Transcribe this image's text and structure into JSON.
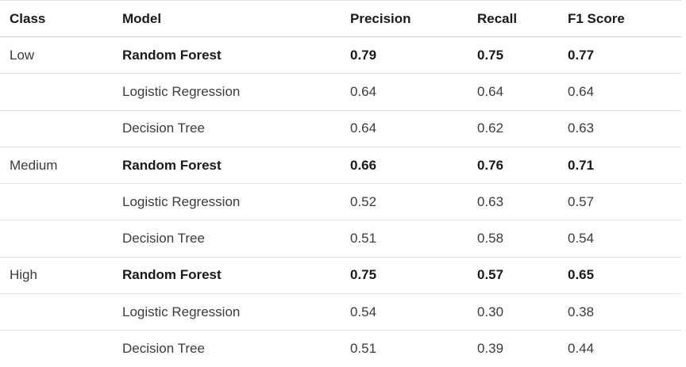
{
  "table": {
    "headers": [
      "Class",
      "Model",
      "Precision",
      "Recall",
      "F1 Score"
    ],
    "rows": [
      {
        "class": "Low",
        "model": "Random Forest",
        "precision": "0.79",
        "recall": "0.75",
        "f1": "0.77",
        "best": true
      },
      {
        "class": "",
        "model": "Logistic Regression",
        "precision": "0.64",
        "recall": "0.64",
        "f1": "0.64",
        "best": false
      },
      {
        "class": "",
        "model": "Decision Tree",
        "precision": "0.64",
        "recall": "0.62",
        "f1": "0.63",
        "best": false
      },
      {
        "class": "Medium",
        "model": "Random Forest",
        "precision": "0.66",
        "recall": "0.76",
        "f1": "0.71",
        "best": true
      },
      {
        "class": "",
        "model": "Logistic Regression",
        "precision": "0.52",
        "recall": "0.63",
        "f1": "0.57",
        "best": false
      },
      {
        "class": "",
        "model": "Decision Tree",
        "precision": "0.51",
        "recall": "0.58",
        "f1": "0.54",
        "best": false
      },
      {
        "class": "High",
        "model": "Random Forest",
        "precision": "0.75",
        "recall": "0.57",
        "f1": "0.65",
        "best": true
      },
      {
        "class": "",
        "model": "Logistic Regression",
        "precision": "0.54",
        "recall": "0.30",
        "f1": "0.38",
        "best": false
      },
      {
        "class": "",
        "model": "Decision Tree",
        "precision": "0.51",
        "recall": "0.39",
        "f1": "0.44",
        "best": false
      }
    ]
  }
}
